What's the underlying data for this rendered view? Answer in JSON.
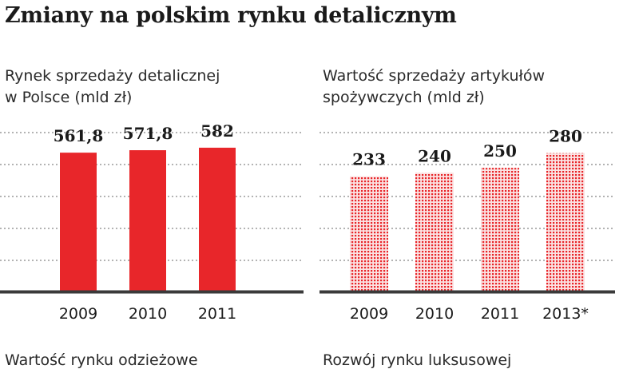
{
  "page": {
    "title": "Zmiany na polskim rynku detalicznym"
  },
  "chart_data": [
    {
      "type": "bar",
      "title_lines": [
        "Rynek sprzedaży detalicznej",
        "w Polsce (mld zł)"
      ],
      "categories": [
        "2009",
        "2010",
        "2011"
      ],
      "values": [
        561.8,
        571.8,
        582
      ],
      "value_labels": [
        "561,8",
        "571,8",
        "582"
      ],
      "ylim": [
        0,
        650
      ],
      "grid": true,
      "bar_style": "solid",
      "color": "#e8262a"
    },
    {
      "type": "bar",
      "title_lines": [
        "Wartość sprzedaży artykułów",
        "spożywczych (mld zł)"
      ],
      "categories": [
        "2009",
        "2010",
        "2011",
        "2013*"
      ],
      "values": [
        233,
        240,
        250,
        280
      ],
      "value_labels": [
        "233",
        "240",
        "250",
        "280"
      ],
      "ylim": [
        0,
        325
      ],
      "grid": true,
      "bar_style": "dotted-pattern",
      "color": "#e8262a"
    }
  ],
  "next_section": {
    "left_title": "Wartość rynku odzieżowe",
    "right_title": "Rozwój rynku luksusowej"
  },
  "colors": {
    "bar": "#e8262a",
    "grid": "#9a9a9a",
    "axis": "#3a3a3a"
  }
}
